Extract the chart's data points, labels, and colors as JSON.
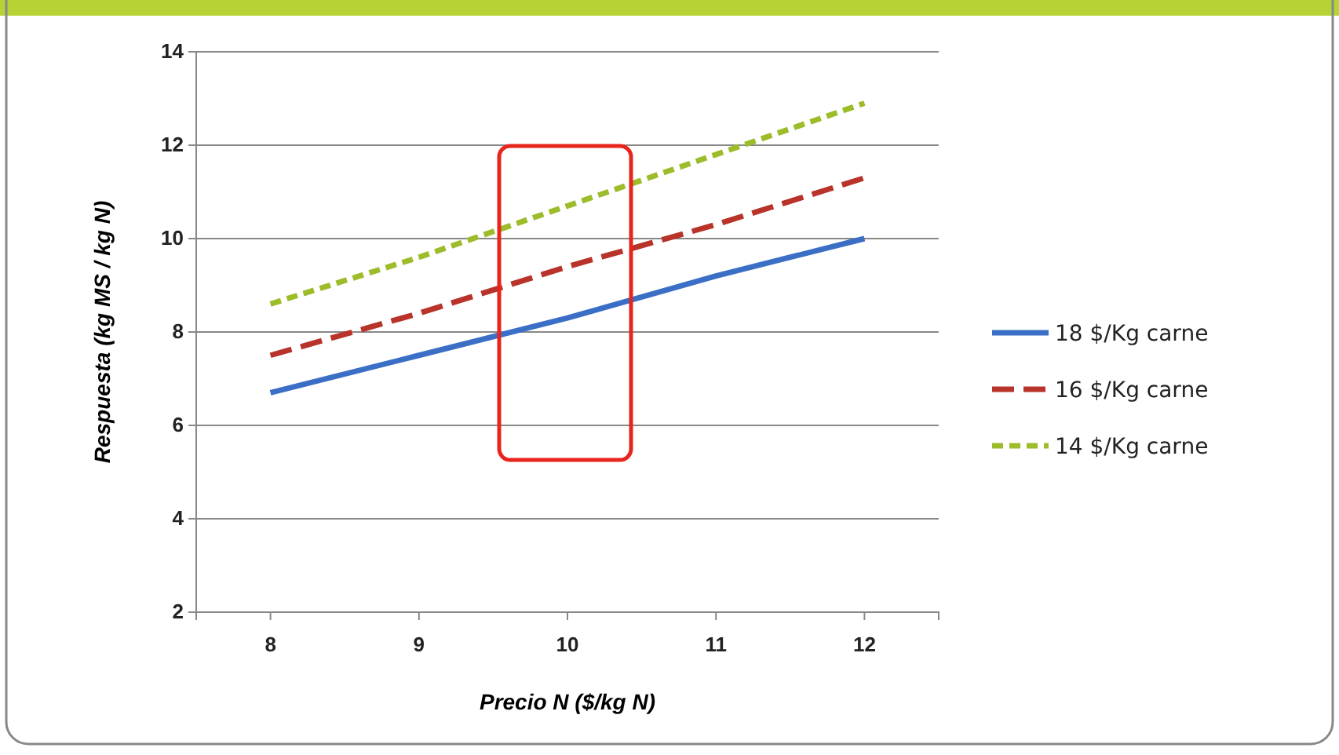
{
  "chart_data": {
    "type": "line",
    "xlabel": "Precio N ($/kg N)",
    "ylabel": "Respuesta (kg MS / kg N)",
    "x": [
      8,
      9,
      10,
      11,
      12
    ],
    "series": [
      {
        "name": "18 $/Kg carne",
        "color": "#3b6fc6",
        "values": [
          6.7,
          7.5,
          8.3,
          9.2,
          10
        ],
        "line_style": "solid"
      },
      {
        "name": "16 $/Kg carne",
        "color": "#b8332a",
        "values": [
          7.5,
          8.4,
          9.4,
          10.3,
          11.3
        ],
        "line_style": "dashed"
      },
      {
        "name": "14 $/Kg carne",
        "color": "#9cbc2a",
        "values": [
          8.6,
          9.6,
          10.7,
          11.8,
          12.9
        ],
        "line_style": "dotted"
      }
    ],
    "xlim": [
      7.5,
      12.5
    ],
    "xticks": [
      8,
      9,
      10,
      11,
      12
    ],
    "ylim": [
      2,
      14
    ],
    "yticks": [
      2,
      4,
      6,
      8,
      10,
      12,
      14
    ],
    "grid": "y",
    "legend": "right",
    "marker": "none"
  }
}
